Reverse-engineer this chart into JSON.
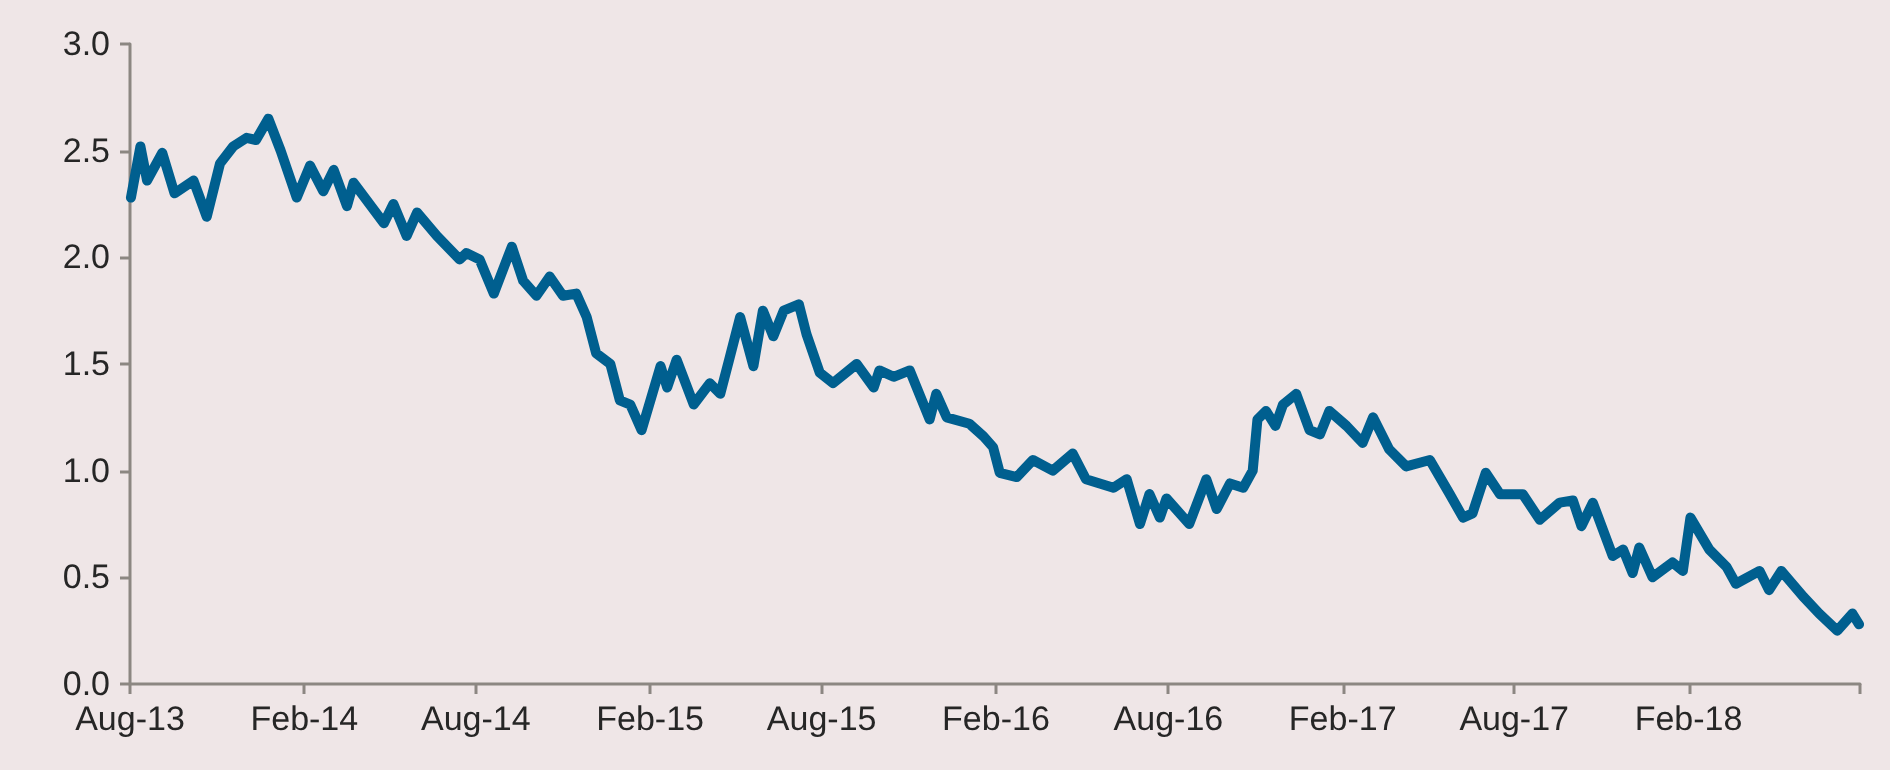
{
  "chart_data": {
    "type": "line",
    "marker": "none",
    "line_style": "solid",
    "grid": false,
    "xlim": [
      "2013-08-01",
      "2018-08-01"
    ],
    "xticks": [
      {
        "value": "2013-08-01",
        "label": "Aug-13"
      },
      {
        "value": "2014-02-01",
        "label": "Feb-14"
      },
      {
        "value": "2014-08-01",
        "label": "Aug-14"
      },
      {
        "value": "2015-02-01",
        "label": "Feb-15"
      },
      {
        "value": "2015-08-01",
        "label": "Aug-15"
      },
      {
        "value": "2016-02-01",
        "label": "Feb-16"
      },
      {
        "value": "2016-08-01",
        "label": "Aug-16"
      },
      {
        "value": "2017-02-01",
        "label": "Feb-17"
      },
      {
        "value": "2017-08-01",
        "label": "Aug-17"
      },
      {
        "value": "2018-02-01",
        "label": "Feb-18"
      },
      {
        "value": "2018-08-01",
        "label": null
      }
    ],
    "ylim": [
      0,
      3
    ],
    "yticks": [
      {
        "value": 0,
        "label": "0.0"
      },
      {
        "value": 0.5,
        "label": "0.5"
      },
      {
        "value": 1,
        "label": "1.0"
      },
      {
        "value": 1.5,
        "label": "1.5"
      },
      {
        "value": 2,
        "label": "2.0"
      },
      {
        "value": 2.5,
        "label": "2.5"
      },
      {
        "value": 3,
        "label": "3.0"
      }
    ],
    "series": [
      {
        "color": "#005f8f",
        "x": [
          "2013-08-02",
          "2013-08-12",
          "2013-08-19",
          "2013-09-04",
          "2013-09-17",
          "2013-10-07",
          "2013-10-21",
          "2013-11-04",
          "2013-11-18",
          "2013-12-02",
          "2013-12-12",
          "2013-12-25",
          "2014-01-07",
          "2014-01-24",
          "2014-02-07",
          "2014-02-21",
          "2014-03-04",
          "2014-03-18",
          "2014-03-25",
          "2014-04-26",
          "2014-05-06",
          "2014-05-20",
          "2014-05-31",
          "2014-06-21",
          "2014-07-15",
          "2014-07-22",
          "2014-08-05",
          "2014-08-20",
          "2014-09-08",
          "2014-09-20",
          "2014-10-04",
          "2014-10-18",
          "2014-11-01",
          "2014-11-15",
          "2014-11-26",
          "2014-12-06",
          "2014-12-21",
          "2014-12-31",
          "2015-01-11",
          "2015-01-23",
          "2015-02-12",
          "2015-02-19",
          "2015-03-01",
          "2015-03-19",
          "2015-04-05",
          "2015-04-16",
          "2015-04-26",
          "2015-05-07",
          "2015-05-21",
          "2015-05-31",
          "2015-06-11",
          "2015-06-22",
          "2015-07-08",
          "2015-07-16",
          "2015-07-30",
          "2015-08-13",
          "2015-09-07",
          "2015-09-25",
          "2015-10-01",
          "2015-10-16",
          "2015-11-02",
          "2015-11-23",
          "2015-11-30",
          "2015-12-11",
          "2016-01-04",
          "2016-01-19",
          "2016-01-29",
          "2016-02-05",
          "2016-02-23",
          "2016-03-11",
          "2016-04-01",
          "2016-04-22",
          "2016-05-06",
          "2016-06-04",
          "2016-06-18",
          "2016-07-02",
          "2016-07-12",
          "2016-07-23",
          "2016-07-30",
          "2016-08-23",
          "2016-09-10",
          "2016-09-21",
          "2016-10-05",
          "2016-10-19",
          "2016-10-29",
          "2016-11-03",
          "2016-11-12",
          "2016-11-22",
          "2016-11-30",
          "2016-12-14",
          "2016-12-28",
          "2017-01-08",
          "2017-01-18",
          "2017-02-05",
          "2017-02-22",
          "2017-03-05",
          "2017-03-22",
          "2017-04-09",
          "2017-05-04",
          "2017-05-25",
          "2017-06-08",
          "2017-06-18",
          "2017-07-02",
          "2017-07-17",
          "2017-08-10",
          "2017-08-28",
          "2017-09-18",
          "2017-10-02",
          "2017-10-11",
          "2017-10-23",
          "2017-11-13",
          "2017-11-24",
          "2017-12-04",
          "2017-12-11",
          "2017-12-25",
          "2018-01-15",
          "2018-01-26",
          "2018-02-03",
          "2018-02-23",
          "2018-03-13",
          "2018-03-23",
          "2018-04-17",
          "2018-04-27",
          "2018-05-10",
          "2018-06-02",
          "2018-06-19",
          "2018-07-08",
          "2018-07-24",
          "2018-07-31"
        ],
        "values": [
          2.28,
          2.52,
          2.36,
          2.49,
          2.3,
          2.36,
          2.19,
          2.44,
          2.52,
          2.56,
          2.55,
          2.65,
          2.5,
          2.28,
          2.43,
          2.31,
          2.41,
          2.24,
          2.35,
          2.16,
          2.25,
          2.1,
          2.21,
          2.1,
          1.99,
          2.02,
          1.99,
          1.83,
          2.05,
          1.89,
          1.82,
          1.91,
          1.82,
          1.83,
          1.72,
          1.55,
          1.5,
          1.33,
          1.31,
          1.19,
          1.49,
          1.39,
          1.52,
          1.31,
          1.41,
          1.36,
          1.53,
          1.72,
          1.49,
          1.75,
          1.63,
          1.75,
          1.78,
          1.64,
          1.46,
          1.41,
          1.5,
          1.39,
          1.47,
          1.44,
          1.47,
          1.24,
          1.36,
          1.25,
          1.22,
          1.16,
          1.11,
          0.99,
          0.97,
          1.05,
          1.0,
          1.08,
          0.96,
          0.92,
          0.96,
          0.75,
          0.89,
          0.78,
          0.87,
          0.75,
          0.96,
          0.82,
          0.94,
          0.92,
          1.0,
          1.24,
          1.28,
          1.21,
          1.31,
          1.36,
          1.19,
          1.17,
          1.28,
          1.21,
          1.13,
          1.25,
          1.1,
          1.02,
          1.05,
          0.89,
          0.78,
          0.8,
          0.99,
          0.89,
          0.89,
          0.77,
          0.85,
          0.86,
          0.74,
          0.85,
          0.6,
          0.63,
          0.52,
          0.64,
          0.5,
          0.57,
          0.53,
          0.78,
          0.63,
          0.55,
          0.47,
          0.53,
          0.44,
          0.53,
          0.41,
          0.33,
          0.25,
          0.33,
          0.28
        ]
      }
    ]
  }
}
